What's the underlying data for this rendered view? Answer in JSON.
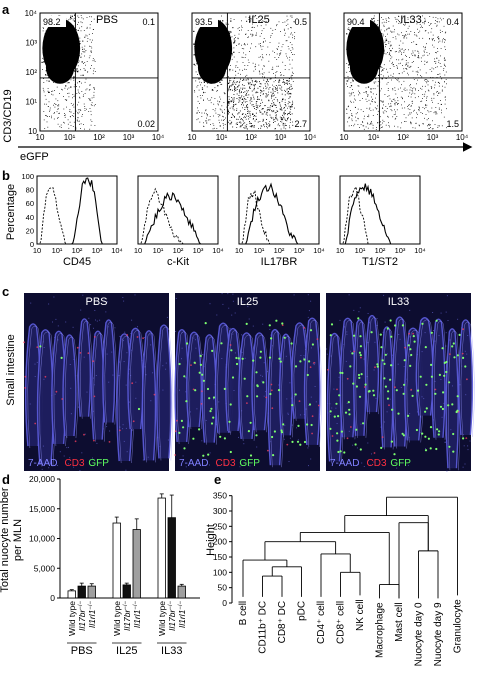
{
  "panel_letters": [
    "a",
    "b",
    "c",
    "d",
    "e"
  ],
  "panel_a": {
    "ylabel": "CD3/CD19",
    "xlabel": "eGFP",
    "tick_labels": [
      "10",
      "10¹",
      "10²",
      "10³",
      "10⁴"
    ],
    "plots": [
      {
        "title": "PBS",
        "q_tl": "98.2",
        "q_tr": "0.1",
        "q_br": "0.02"
      },
      {
        "title": "IL25",
        "q_tl": "93.5",
        "q_tr": "0.5",
        "q_br": "2.7"
      },
      {
        "title": "IL33",
        "q_tl": "90.4",
        "q_tr": "0.4",
        "q_br": "1.5"
      }
    ]
  },
  "panel_b": {
    "ylabel": "Percentage",
    "y_ticks": [
      "0",
      "20",
      "40",
      "60",
      "80",
      "100"
    ],
    "x_ticks": [
      "10",
      "10¹",
      "10²",
      "10³",
      "10⁴"
    ],
    "markers": [
      "CD45",
      "c-Kit",
      "IL17BR",
      "T1/ST2"
    ]
  },
  "panel_c": {
    "side_label": "Small intestine",
    "titles": [
      "PBS",
      "IL25",
      "IL33"
    ],
    "stain_legend": [
      {
        "text": "7-AAD",
        "color": "#8080ff"
      },
      {
        "text": "CD3",
        "color": "#ff3040"
      },
      {
        "text": "GFP",
        "color": "#60ff60"
      }
    ]
  },
  "chart_data": [
    {
      "type": "bar",
      "ylabel": "Total nuocyte number per MLN",
      "ylim": [
        0,
        20000
      ],
      "y_ticks": [
        "0",
        "5,000",
        "10,000",
        "15,000",
        "20,000"
      ],
      "groups": [
        "PBS",
        "IL25",
        "IL33"
      ],
      "categories": [
        "Wild type",
        "Il17br−/−",
        "Il1rl1−/−"
      ],
      "category_colors": [
        "#ffffff",
        "#111111",
        "#a0a0a0"
      ],
      "values": [
        [
          1200,
          2000,
          2000
        ],
        [
          12600,
          2200,
          11500
        ],
        [
          16800,
          13500,
          2000
        ]
      ],
      "errors": [
        [
          200,
          500,
          400
        ],
        [
          1000,
          300,
          1800
        ],
        [
          700,
          3800,
          300
        ]
      ]
    },
    {
      "type": "dendrogram",
      "ylabel": "Height",
      "ylim": [
        0,
        375
      ],
      "y_ticks": [
        "0",
        "50",
        "100",
        "150",
        "200",
        "250",
        "300",
        "350"
      ],
      "leaves": [
        "B cell",
        "CD11b⁺ DC",
        "CD8⁺ DC",
        "pDC",
        "CD4⁺ cell",
        "CD8⁺ cell",
        "NK cell",
        "Macrophage",
        "Mast cell",
        "Nuocyte day 0",
        "Nuocyte day 9",
        "Granulocyte"
      ]
    }
  ]
}
